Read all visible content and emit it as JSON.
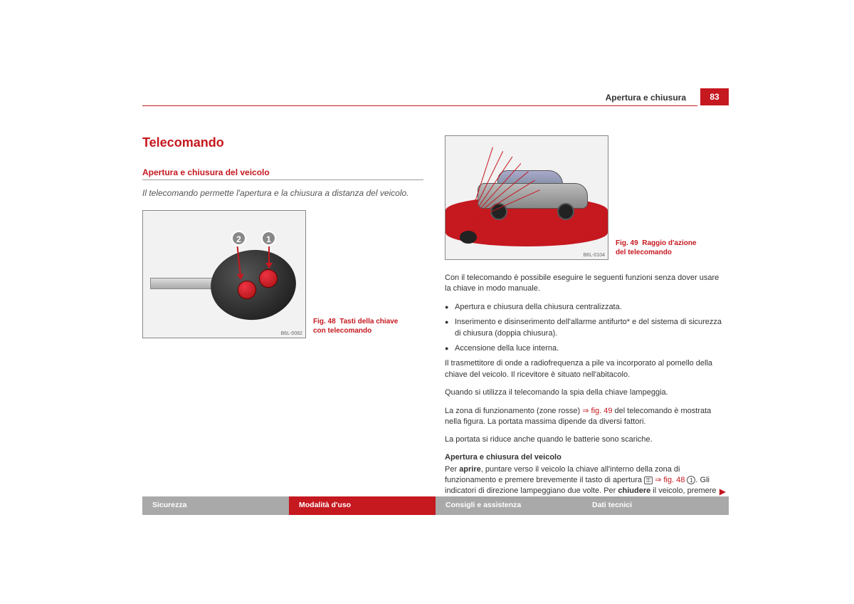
{
  "header": {
    "section": "Apertura e chiusura",
    "page_number": "83"
  },
  "left": {
    "title": "Telecomando",
    "subtitle": "Apertura e chiusura del veicolo",
    "intro": "Il telecomando permette l'apertura e la chiusura a distanza del veicolo.",
    "fig48_label": "Fig. 48",
    "fig48_caption": "Tasti della chiave con telecomando",
    "fig48_code": "B6L-0082",
    "callout1": "1",
    "callout2": "2"
  },
  "right": {
    "fig49_label": "Fig. 49",
    "fig49_caption": "Raggio d'azione del telecomando",
    "fig49_code": "B6L-0104",
    "p1": "Con il telecomando è possibile eseguire le seguenti funzioni senza dover usare la chiave in modo manuale.",
    "b1": "Apertura e chiusura della chiusura centralizzata.",
    "b2": "Inserimento e disinserimento dell'allarme antifurto* e del sistema di sicurezza di chiusura (doppia chiusura).",
    "b3": "Accensione della luce interna.",
    "p2": "Il trasmettitore di onde a radiofrequenza a pile va incorporato al pomello della chiave del veicolo. Il ricevitore è situato nell'abitacolo.",
    "p3": "Quando si utilizza il telecomando la spia della chiave lampeggia.",
    "p4a": "La zona di funzionamento (zone rosse) ",
    "p4_ref": "⇒ fig. 49",
    "p4b": " del telecomando è mostrata nella figura. La portata massima dipende da diversi fattori.",
    "p5": "La portata si riduce anche quando le batterie sono scariche.",
    "sub": "Apertura e chiusura del veicolo",
    "p6a": "Per ",
    "p6_bold1": "aprire",
    "p6b": ", puntare verso il veicolo la chiave all'interno della zona di funzionamento e premere brevemente il tasto di apertura ",
    "p6_ref": " ⇒ fig. 48 ",
    "p6_circ": "1",
    "p6c": ". Gli indicatori di direzione lampeggiano due volte. Per ",
    "p6_bold2": "chiudere",
    "p6d": " il veicolo, premere"
  },
  "tabs": {
    "t1": "Sicurezza",
    "t2": "Modalità d'uso",
    "t3": "Consigli e assistenza",
    "t4": "Dati tecnici"
  },
  "colors": {
    "accent": "#c5181f",
    "tab_inactive": "#a9a9a9",
    "text": "#333333"
  }
}
